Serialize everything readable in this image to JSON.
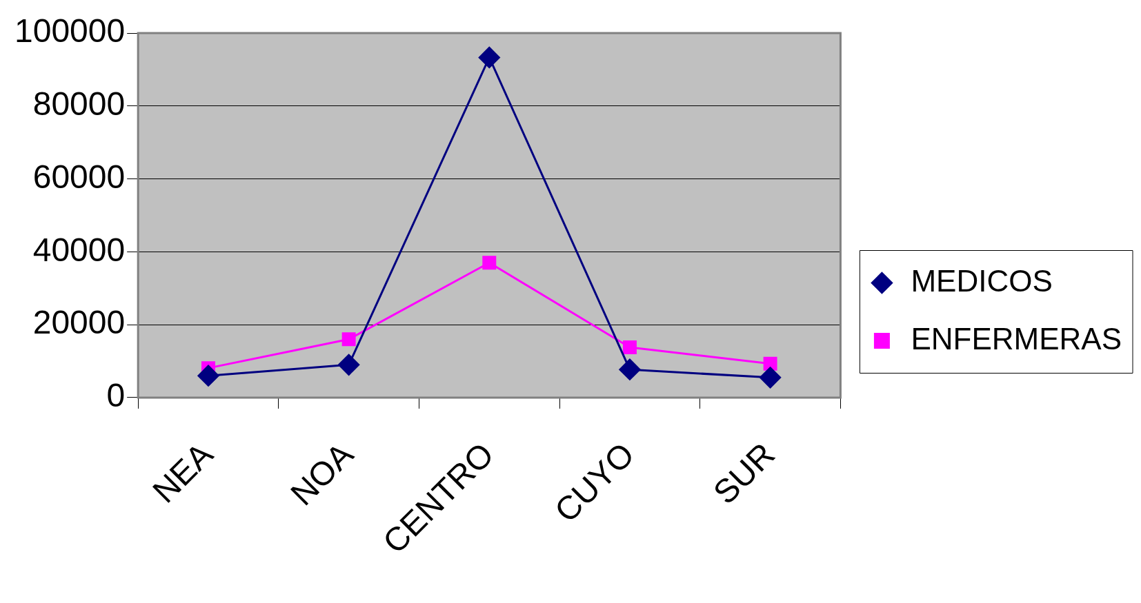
{
  "chart_data": {
    "type": "line",
    "categories": [
      "NEA",
      "NOA",
      "CENTRO",
      "CUYO",
      "SUR"
    ],
    "series": [
      {
        "name": "MEDICOS",
        "color": "#000080",
        "marker": "diamond",
        "values": [
          6000,
          9000,
          93300,
          7700,
          5500
        ]
      },
      {
        "name": "ENFERMERAS",
        "color": "#ff00ff",
        "marker": "square",
        "values": [
          8100,
          16000,
          37000,
          13800,
          9300
        ]
      }
    ],
    "ylim": [
      0,
      100000
    ],
    "yticks": [
      0,
      20000,
      40000,
      60000,
      80000,
      100000
    ],
    "grid": "y",
    "legend": "right",
    "line_style": "solid"
  }
}
